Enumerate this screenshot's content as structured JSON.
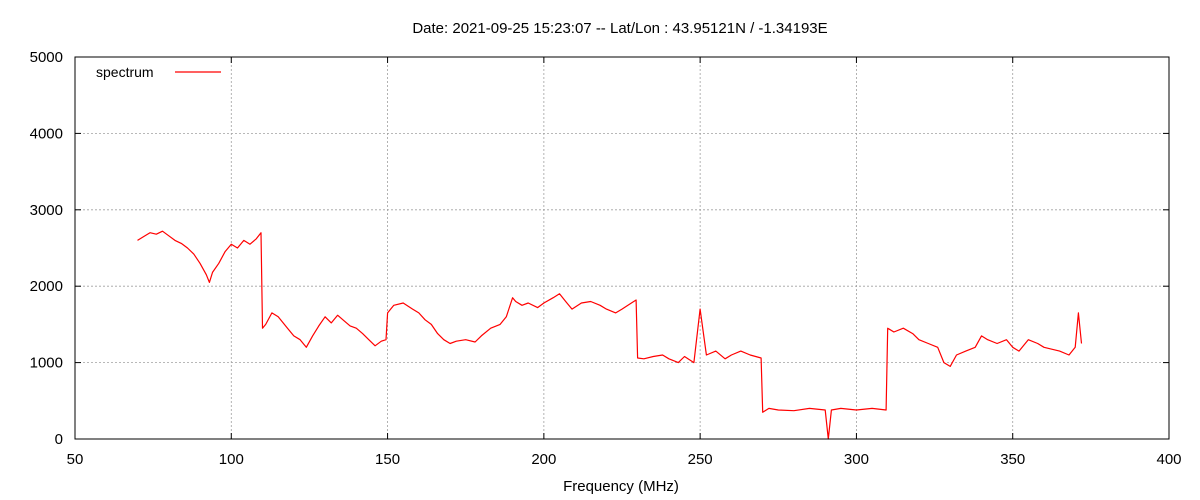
{
  "chart_data": {
    "type": "line",
    "title": "Date: 2021-09-25 15:23:07  --  Lat/Lon : 43.95121N / -1.34193E",
    "xlabel": "Frequency (MHz)",
    "ylabel": "",
    "xlim": [
      50,
      400
    ],
    "ylim": [
      0,
      5000
    ],
    "xticks": [
      50,
      100,
      150,
      200,
      250,
      300,
      350,
      400
    ],
    "yticks": [
      0,
      1000,
      2000,
      3000,
      4000,
      5000
    ],
    "grid": true,
    "legend_position": "top-left",
    "series": [
      {
        "name": "spectrum",
        "color": "#ff0000",
        "x": [
          70,
          72,
          74,
          76,
          78,
          80,
          82,
          84,
          86,
          88,
          90,
          92,
          93,
          94,
          96,
          98,
          100,
          102,
          104,
          106,
          108,
          109.5,
          110,
          111,
          113,
          115,
          118,
          120,
          122,
          124,
          126,
          128,
          130,
          132,
          134,
          136,
          138,
          140,
          142,
          144,
          146,
          148,
          149.5,
          150,
          152,
          155,
          158,
          160,
          162,
          164,
          166,
          168,
          170,
          172,
          175,
          178,
          180,
          183,
          186,
          188,
          190,
          191,
          193,
          195,
          198,
          200,
          203,
          205,
          207,
          209,
          212,
          215,
          218,
          220,
          223,
          225,
          228,
          229.5,
          230,
          232,
          235,
          238,
          240,
          243,
          245,
          248,
          250,
          252,
          255,
          258,
          260,
          263,
          266,
          269.5,
          270,
          272,
          275,
          280,
          285,
          290,
          291,
          292,
          295,
          300,
          305,
          309.5,
          310,
          312,
          315,
          318,
          320,
          323,
          326,
          328,
          330,
          332,
          335,
          338,
          340,
          342,
          345,
          348,
          350,
          352,
          355,
          358,
          360,
          362,
          365,
          368,
          370,
          371,
          372
        ],
        "y": [
          2600,
          2650,
          2700,
          2680,
          2720,
          2660,
          2600,
          2560,
          2500,
          2420,
          2300,
          2150,
          2050,
          2180,
          2300,
          2450,
          2550,
          2500,
          2600,
          2550,
          2620,
          2700,
          1450,
          1500,
          1650,
          1600,
          1450,
          1350,
          1300,
          1200,
          1350,
          1480,
          1600,
          1520,
          1620,
          1550,
          1480,
          1450,
          1380,
          1300,
          1220,
          1280,
          1300,
          1650,
          1750,
          1780,
          1700,
          1650,
          1560,
          1500,
          1380,
          1300,
          1250,
          1280,
          1300,
          1270,
          1350,
          1450,
          1500,
          1600,
          1850,
          1800,
          1750,
          1780,
          1720,
          1780,
          1850,
          1900,
          1800,
          1700,
          1780,
          1800,
          1750,
          1700,
          1650,
          1700,
          1780,
          1820,
          1060,
          1050,
          1080,
          1100,
          1050,
          1000,
          1080,
          1000,
          1700,
          1100,
          1150,
          1050,
          1100,
          1150,
          1100,
          1060,
          350,
          400,
          380,
          370,
          400,
          380,
          0,
          380,
          400,
          380,
          400,
          380,
          1450,
          1400,
          1450,
          1380,
          1300,
          1250,
          1200,
          1000,
          950,
          1100,
          1150,
          1200,
          1350,
          1300,
          1250,
          1300,
          1200,
          1150,
          1300,
          1250,
          1200,
          1180,
          1150,
          1100,
          1200,
          1650,
          1250
        ]
      }
    ]
  }
}
